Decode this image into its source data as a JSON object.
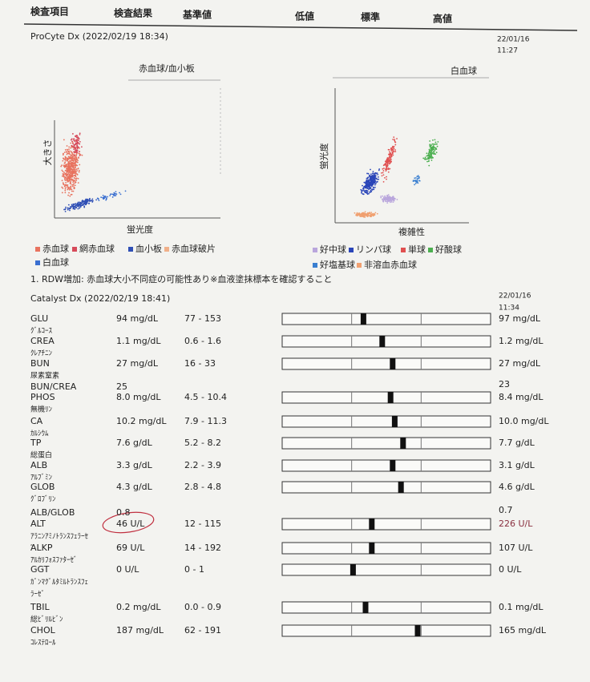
{
  "header": {
    "columns": [
      "検査項目",
      "検査結果",
      "基準値",
      "低値",
      "標準",
      "高値"
    ]
  },
  "procyte": {
    "title": "ProCyte Dx (2022/02/19 18:34)",
    "date": "22/01/16",
    "time": "11:27",
    "rbc_plot": {
      "title": "赤血球/血小板",
      "y_label": "大きさ",
      "x_label": "蛍光度",
      "legend": [
        {
          "name": "赤血球",
          "color": "#e8735f"
        },
        {
          "name": "網赤血球",
          "color": "#d64a5a"
        },
        {
          "name": "血小板",
          "color": "#2f4fb5"
        },
        {
          "name": "赤血球破片",
          "color": "#f0b08a"
        },
        {
          "name": "白血球",
          "color": "#3a6fd0"
        }
      ]
    },
    "wbc_plot": {
      "title": "白血球",
      "y_label": "蛍光度",
      "x_label": "複雑性",
      "legend": [
        {
          "name": "好中球",
          "color": "#b9a6dc"
        },
        {
          "name": "リンパ球",
          "color": "#2a45b8"
        },
        {
          "name": "単球",
          "color": "#e05050"
        },
        {
          "name": "好酸球",
          "color": "#4caf50"
        },
        {
          "name": "好塩基球",
          "color": "#3a7fd0"
        },
        {
          "name": "非溶血赤血球",
          "color": "#f0a070"
        }
      ]
    },
    "note": "1. RDW増加: 赤血球大小不同症の可能性あり※血液塗抹標本を確認すること"
  },
  "catalyst": {
    "title": "Catalyst Dx (2022/02/19 18:41)",
    "date": "22/01/16",
    "time": "11:34",
    "rows": [
      {
        "name": "GLU",
        "jp": "ｸﾞﾙｺｰｽ",
        "result": "94 mg/dL",
        "range": "77 - 153",
        "previous": "97 mg/dL",
        "gauge": 0.39
      },
      {
        "name": "CREA",
        "jp": "ｸﾚｱﾁﾆﾝ",
        "result": "1.1 mg/dL",
        "range": "0.6 - 1.6",
        "previous": "1.2 mg/dL",
        "gauge": 0.48
      },
      {
        "name": "BUN",
        "jp": "尿素窒素",
        "result": "27 mg/dL",
        "range": "16 - 33",
        "previous": "27 mg/dL",
        "gauge": 0.53
      },
      {
        "name": "BUN/CREA",
        "result": "25",
        "previous": "23"
      },
      {
        "name": "PHOS",
        "jp": "無機ﾘﾝ",
        "result": "8.0 mg/dL",
        "range": "4.5 - 10.4",
        "previous": "8.4 mg/dL",
        "gauge": 0.52
      },
      {
        "name": "CA",
        "jp": "ｶﾙｼｳﾑ",
        "result": "10.2 mg/dL",
        "range": "7.9 - 11.3",
        "previous": "10.0 mg/dL",
        "gauge": 0.54
      },
      {
        "name": "TP",
        "jp": "総蛋白",
        "result": "7.6 g/dL",
        "range": "5.2 - 8.2",
        "previous": "7.7 g/dL",
        "gauge": 0.58
      },
      {
        "name": "ALB",
        "jp": "ｱﾙﾌﾞﾐﾝ",
        "result": "3.3 g/dL",
        "range": "2.2 - 3.9",
        "previous": "3.1 g/dL",
        "gauge": 0.53
      },
      {
        "name": "GLOB",
        "jp": "ｸﾞﾛﾌﾞﾘﾝ",
        "result": "4.3 g/dL",
        "range": "2.8 - 4.8",
        "previous": "4.6 g/dL",
        "gauge": 0.57
      },
      {
        "name": "ALB/GLOB",
        "result": "0.8",
        "previous": "0.7"
      },
      {
        "name": "ALT",
        "jp": "ｱﾗﾆﾝｱﾐﾉﾄﾗﾝｽﾌｪﾗｰｾﾞ",
        "result": "46 U/L",
        "range": "12 - 115",
        "previous": "226 U/L",
        "gauge": 0.43
      },
      {
        "name": "ALKP",
        "jp": "ｱﾙｶﾘﾌｫｽﾌｧﾀｰｾﾞ",
        "result": "69 U/L",
        "range": "14 - 192",
        "previous": "107 U/L",
        "gauge": 0.43
      },
      {
        "name": "GGT",
        "jp": "ｶﾞﾝﾏｸﾞﾙﾀﾐﾙﾄﾗﾝｽﾌｪﾗｰｾﾞ",
        "result": "0 U/L",
        "range": "0 - 1",
        "previous": "0 U/L",
        "gauge": 0.34
      },
      {
        "name": "TBIL",
        "jp": "総ﾋﾞﾘﾙﾋﾞﾝ",
        "result": "0.2 mg/dL",
        "range": "0.0 - 0.9",
        "previous": "0.1 mg/dL",
        "gauge": 0.4
      },
      {
        "name": "CHOL",
        "jp": "ｺﾚｽﾃﾛｰﾙ",
        "result": "187 mg/dL",
        "range": "62 - 191",
        "previous": "165 mg/dL",
        "gauge": 0.65
      }
    ]
  }
}
